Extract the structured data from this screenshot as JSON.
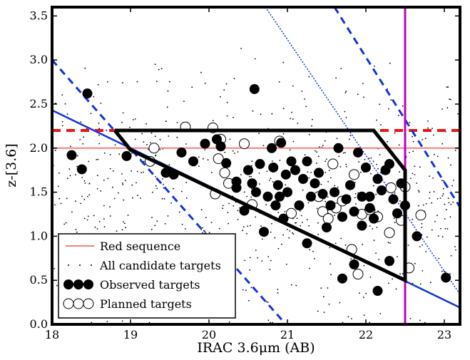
{
  "chart_data": {
    "type": "scatter",
    "xlabel": "IRAC 3.6μm (AB)",
    "ylabel": "z-[3.6]",
    "xlim": [
      18.0,
      23.2
    ],
    "ylim": [
      0.0,
      3.6
    ],
    "xticks": [
      "18",
      "19",
      "20",
      "21",
      "22",
      "23"
    ],
    "yticks": [
      "0.0",
      "0.5",
      "1.0",
      "1.5",
      "2.0",
      "2.5",
      "3.0",
      "3.5"
    ],
    "grid": false,
    "legend": {
      "placement": "lower-left",
      "entries": [
        "Red sequence",
        "All candidate targets",
        "Observed targets",
        "Planned targets"
      ]
    },
    "colors": {
      "red_sequence": "#f08080",
      "cut_red_dashed": "#ee1111",
      "magnitude_limit": "#bb00bb",
      "blue": "#1133dd",
      "selection_box": "#000000"
    },
    "lines": {
      "red_sequence": {
        "y": 2.0
      },
      "red_dashed_horizontal": {
        "y": 2.2
      },
      "magnitude_limit_vertical": {
        "x": 22.5
      },
      "blue_solid": {
        "x": [
          18.0,
          23.2
        ],
        "y": [
          2.43,
          0.19
        ]
      },
      "blue_dashed_left": {
        "x": [
          18.0,
          20.98
        ],
        "y": [
          3.0,
          0.0
        ]
      },
      "blue_dashed_right": {
        "x": [
          21.6,
          23.2
        ],
        "y": [
          3.6,
          1.33
        ]
      },
      "blue_dotted": {
        "x": [
          20.72,
          23.2
        ],
        "y": [
          3.6,
          0.34
        ]
      },
      "selection_box": {
        "x": [
          18.8,
          22.1,
          22.5,
          22.5,
          19.0,
          18.8
        ],
        "y": [
          2.2,
          2.2,
          1.75,
          0.5,
          1.98,
          2.2
        ]
      }
    },
    "series": [
      {
        "name": "Observed targets",
        "marker": "filled-circle",
        "x": [
          18.45,
          18.25,
          18.38,
          18.95,
          19.45,
          19.55,
          19.65,
          19.8,
          19.95,
          20.1,
          20.15,
          20.22,
          20.35,
          20.5,
          20.55,
          20.6,
          20.65,
          20.75,
          20.8,
          20.82,
          20.85,
          20.88,
          20.9,
          20.92,
          20.95,
          20.98,
          21.0,
          21.05,
          21.1,
          21.15,
          21.2,
          21.25,
          21.3,
          21.35,
          21.4,
          21.45,
          21.5,
          21.55,
          21.6,
          21.65,
          21.7,
          21.75,
          21.8,
          21.85,
          21.9,
          21.95,
          22.0,
          22.05,
          22.1,
          22.15,
          22.2,
          22.25,
          22.3,
          22.35,
          22.4,
          22.45,
          22.5,
          20.45,
          20.7,
          21.7,
          21.85,
          22.3,
          22.65,
          23.02,
          22.15,
          20.58,
          21.25,
          21.95,
          22.05,
          20.35
        ],
        "y": [
          2.62,
          1.92,
          1.76,
          1.91,
          1.72,
          1.7,
          1.95,
          1.85,
          2.05,
          2.1,
          2.02,
          1.83,
          1.55,
          1.75,
          1.6,
          1.5,
          1.82,
          1.45,
          2.0,
          1.78,
          1.35,
          1.58,
          1.45,
          2.06,
          1.2,
          1.7,
          1.5,
          1.85,
          1.75,
          1.35,
          1.65,
          1.85,
          1.45,
          1.6,
          1.72,
          1.48,
          1.1,
          1.35,
          1.5,
          2.0,
          1.22,
          1.42,
          1.58,
          1.28,
          1.95,
          1.45,
          1.78,
          1.32,
          1.2,
          1.65,
          1.52,
          1.75,
          1.82,
          1.42,
          1.26,
          1.6,
          1.35,
          1.29,
          1.05,
          0.52,
          0.68,
          0.72,
          1.0,
          0.53,
          0.38,
          2.67,
          0.92,
          1.12,
          1.45,
          1.62
        ],
        "color": "#000000"
      },
      {
        "name": "Planned targets",
        "marker": "open-circle",
        "x": [
          19.3,
          19.25,
          19.7,
          20.05,
          20.15,
          20.2,
          20.12,
          20.08,
          20.25,
          20.45,
          20.9,
          21.05,
          21.4,
          21.45,
          21.52,
          21.58,
          21.62,
          21.7,
          21.85,
          21.95,
          22.05,
          22.15,
          22.3,
          22.32,
          22.45,
          22.5,
          22.7,
          21.82,
          21.9,
          22.55,
          20.55
        ],
        "y": [
          2.0,
          1.85,
          2.24,
          2.23,
          2.1,
          1.72,
          1.88,
          1.48,
          1.6,
          2.05,
          2.08,
          1.26,
          1.45,
          1.28,
          1.2,
          1.82,
          1.32,
          1.4,
          1.7,
          1.25,
          1.3,
          1.22,
          1.04,
          1.55,
          1.18,
          1.56,
          1.24,
          0.85,
          0.57,
          0.64,
          1.36
        ],
        "color": "#000000"
      }
    ]
  }
}
